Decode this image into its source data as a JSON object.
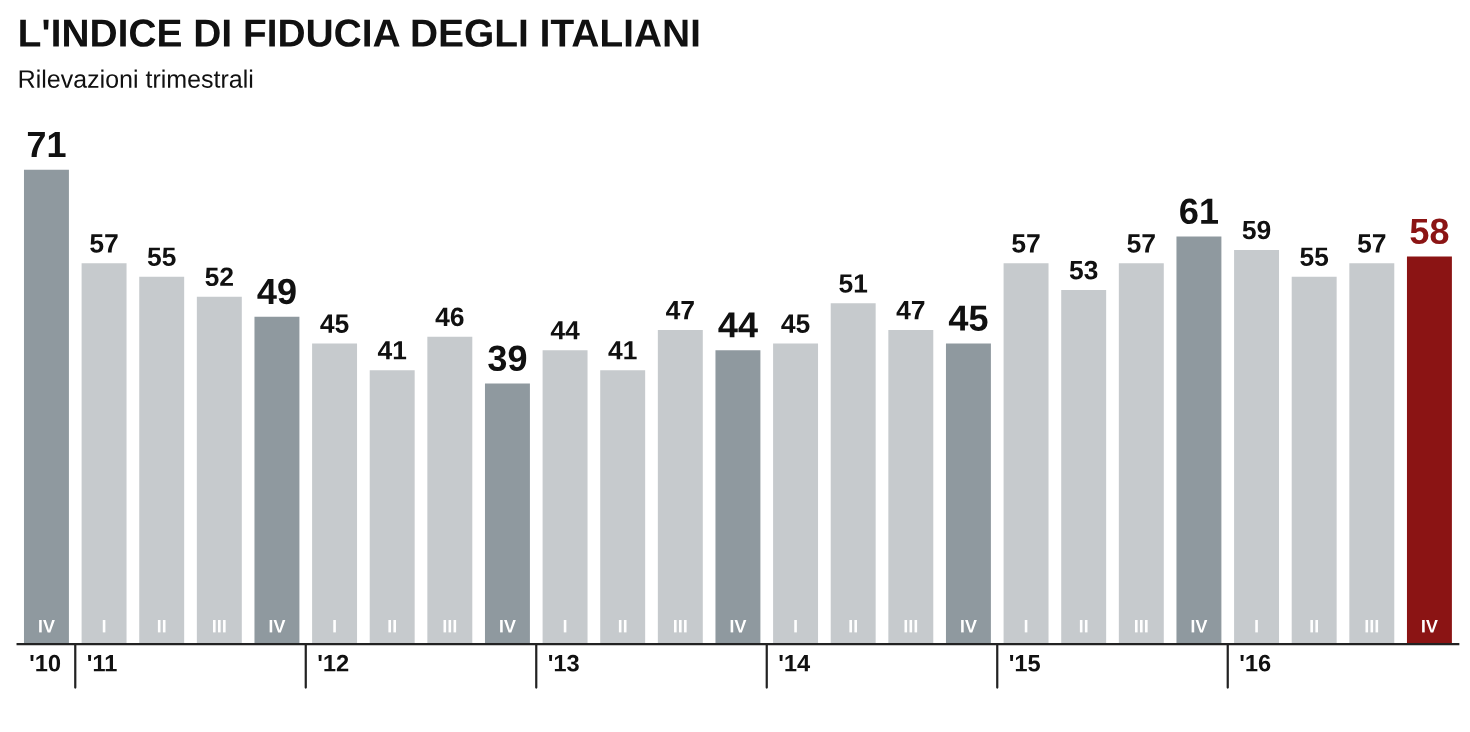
{
  "chart_data": {
    "type": "bar",
    "title": "L'INDICE DI FIDUCIA DEGLI ITALIANI",
    "subtitle": "Rilevazioni trimestrali",
    "categories": [
      "IV",
      "I",
      "II",
      "III",
      "IV",
      "I",
      "II",
      "III",
      "IV",
      "I",
      "II",
      "III",
      "IV",
      "I",
      "II",
      "III",
      "IV",
      "I",
      "II",
      "III",
      "IV",
      "I",
      "II",
      "III",
      "IV"
    ],
    "values": [
      71,
      57,
      55,
      52,
      49,
      45,
      41,
      46,
      39,
      44,
      41,
      47,
      44,
      45,
      51,
      47,
      45,
      57,
      53,
      57,
      61,
      59,
      55,
      57,
      58
    ],
    "colors": [
      "#8f999f",
      "#c6cacd",
      "#c6cacd",
      "#c6cacd",
      "#8f999f",
      "#c6cacd",
      "#c6cacd",
      "#c6cacd",
      "#8f999f",
      "#c6cacd",
      "#c6cacd",
      "#c6cacd",
      "#8f999f",
      "#c6cacd",
      "#c6cacd",
      "#c6cacd",
      "#8f999f",
      "#c6cacd",
      "#c6cacd",
      "#c6cacd",
      "#8f999f",
      "#c6cacd",
      "#c6cacd",
      "#c6cacd",
      "#8b1414"
    ],
    "annotations": [
      "'10",
      "'11",
      "'12",
      "'13",
      "'14",
      "'15",
      "'16"
    ],
    "data_labels": true,
    "tick_labels": "x"
  }
}
